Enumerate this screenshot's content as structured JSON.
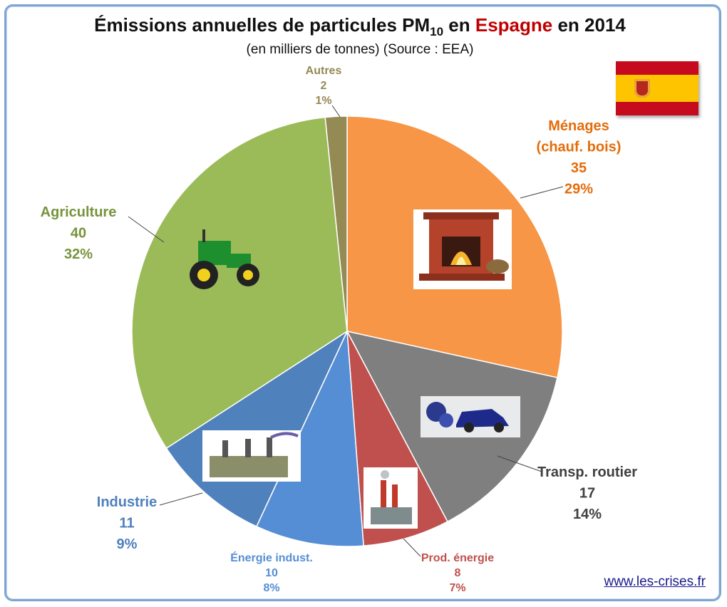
{
  "title": {
    "prefix": "Émissions annuelles de particules PM",
    "subscript": "10",
    "middle": " en ",
    "highlight": "Espagne",
    "suffix": " en 2014"
  },
  "subtitle": "(en milliers de tonnes) (Source : EEA)",
  "footer_link": "www.les-crises.fr",
  "chart_data": {
    "type": "pie",
    "slices": [
      {
        "label_lines": [
          "Ménages",
          "(chauf. bois)"
        ],
        "value": 35,
        "pct": "29%",
        "color": "#f79646",
        "label_color": "#e46c0a",
        "icon": "fireplace-icon"
      },
      {
        "label_lines": [
          "Transp. routier"
        ],
        "value": 17,
        "pct": "14%",
        "color": "#7f7f7f",
        "label_color": "#404040",
        "icon": "car-exhaust-icon"
      },
      {
        "label_lines": [
          "Prod. énergie"
        ],
        "value": 8,
        "pct": "7%",
        "color": "#c0504d",
        "label_color": "#c0504d",
        "icon": "power-plant-icon"
      },
      {
        "label_lines": [
          "Énergie indust."
        ],
        "value": 10,
        "pct": "8%",
        "color": "#558ed5",
        "label_color": "#558ed5",
        "icon": ""
      },
      {
        "label_lines": [
          "Industrie"
        ],
        "value": 11,
        "pct": "9%",
        "color": "#4f81bd",
        "label_color": "#4f81bd",
        "icon": "factory-icon"
      },
      {
        "label_lines": [
          "Agriculture"
        ],
        "value": 40,
        "pct": "32%",
        "color": "#9bbb59",
        "label_color": "#77933c",
        "icon": "tractor-icon"
      },
      {
        "label_lines": [
          "Autres"
        ],
        "value": 2,
        "pct": "1%",
        "color": "#948a54",
        "label_color": "#948a54",
        "icon": ""
      }
    ],
    "legend": "none"
  },
  "colors": {
    "frame_border": "#7ea6d3",
    "title_highlight": "#c00000",
    "flag_red": "#c60b1e",
    "flag_yellow": "#ffc400"
  }
}
